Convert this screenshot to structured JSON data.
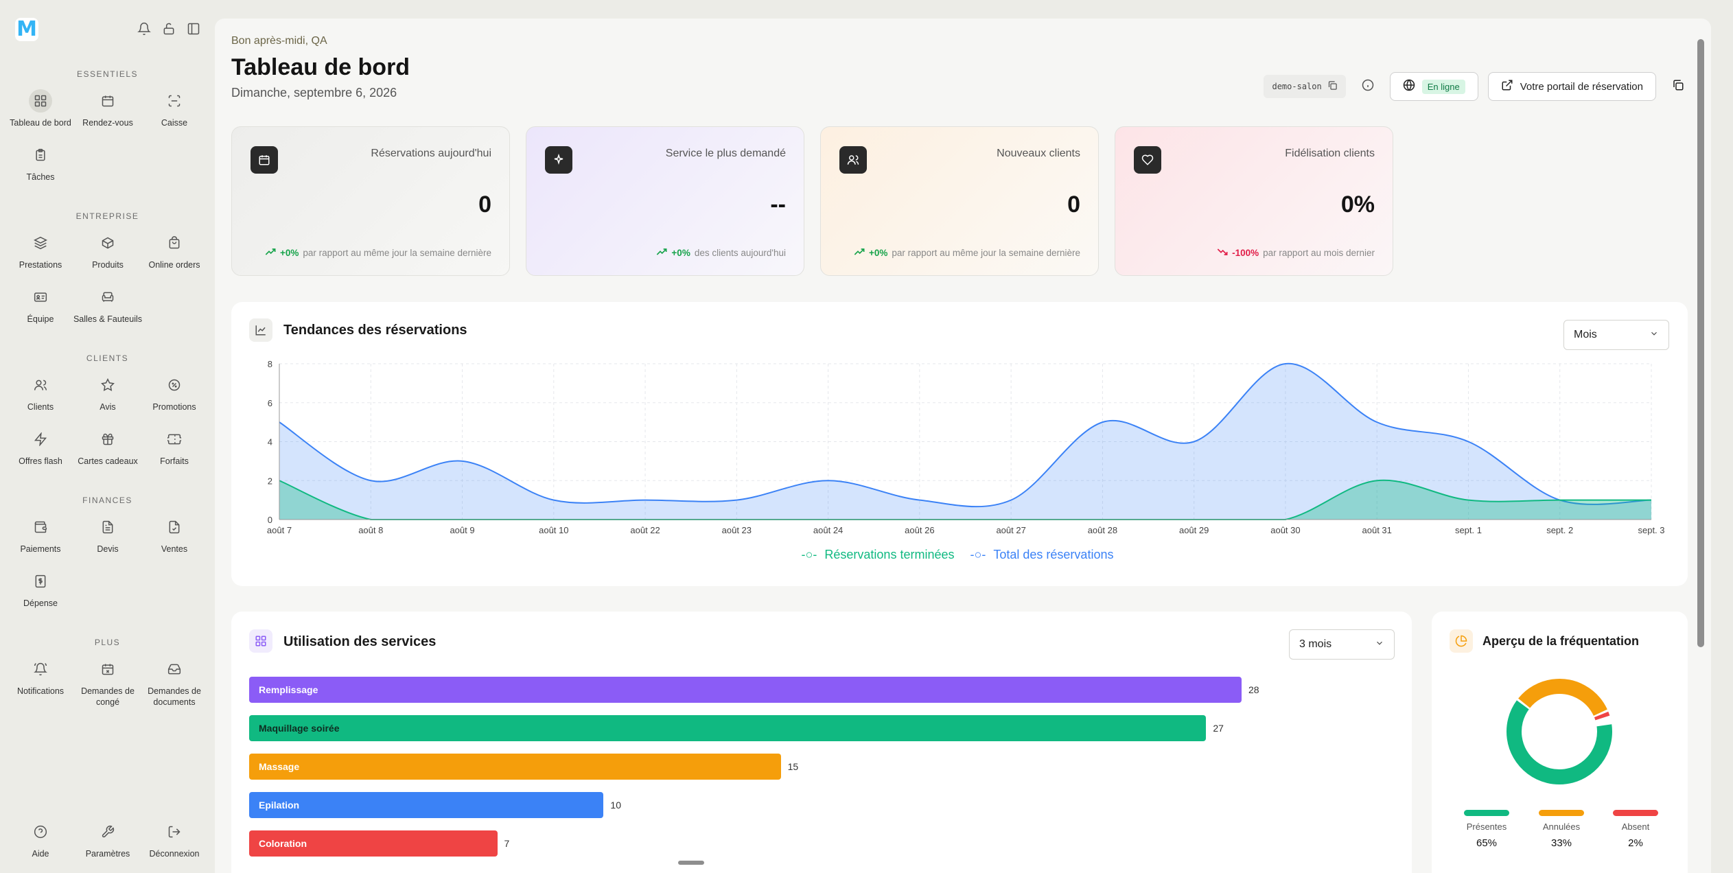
{
  "sidebar": {
    "sections": {
      "essentiels": "ESSENTIELS",
      "entreprise": "ENTREPRISE",
      "clients": "CLIENTS",
      "finances": "FINANCES",
      "plus": "PLUS"
    },
    "items": {
      "dashboard": "Tableau de bord",
      "appointments": "Rendez-vous",
      "register": "Caisse",
      "tasks": "Tâches",
      "services": "Prestations",
      "products": "Produits",
      "online_orders": "Online orders",
      "team": "Équipe",
      "rooms": "Salles & Fauteuils",
      "clients": "Clients",
      "reviews": "Avis",
      "promotions": "Promotions",
      "flash_offers": "Offres flash",
      "gift_cards": "Cartes cadeaux",
      "packages": "Forfaits",
      "payments": "Paiements",
      "quotes": "Devis",
      "sales": "Ventes",
      "expense": "Dépense",
      "notifications": "Notifications",
      "leave_requests": "Demandes de congé",
      "document_requests": "Demandes de documents",
      "help": "Aide",
      "settings": "Paramètres",
      "logout": "Déconnexion"
    }
  },
  "header": {
    "greeting": "Bon après-midi, QA",
    "title": "Tableau de bord",
    "date": "Dimanche, septembre 6, 2026",
    "slug": "demo-salon",
    "online_badge": "En ligne",
    "portal_button": "Votre portail de réservation"
  },
  "stats": [
    {
      "label": "Réservations aujourd'hui",
      "value": "0",
      "trend": "+0%",
      "trend_text": "par rapport au même jour la semaine dernière"
    },
    {
      "label": "Service le plus demandé",
      "value": "--",
      "trend": "+0%",
      "trend_text": "des clients aujourd'hui"
    },
    {
      "label": "Nouveaux clients",
      "value": "0",
      "trend": "+0%",
      "trend_text": "par rapport au même jour la semaine dernière"
    },
    {
      "label": "Fidélisation clients",
      "value": "0%",
      "trend": "-100%",
      "trend_text": "par rapport au mois dernier"
    }
  ],
  "trends_panel": {
    "title": "Tendances des réservations",
    "period": "Mois"
  },
  "services_panel": {
    "title": "Utilisation des services",
    "period": "3 mois"
  },
  "attendance_panel": {
    "title": "Aperçu de la fréquentation",
    "items": [
      {
        "label": "Présentes",
        "pct": "65%",
        "value": 65,
        "color": "#10b981"
      },
      {
        "label": "Annulées",
        "pct": "33%",
        "value": 33,
        "color": "#f59e0b"
      },
      {
        "label": "Absent",
        "pct": "2%",
        "value": 2,
        "color": "#ef4444"
      }
    ]
  },
  "colors": {
    "completed": "#10b981",
    "total": "#3b82f6",
    "purple": "#8b5cf6",
    "green": "#10b981",
    "orange": "#f59e0b",
    "blue": "#3b82f6",
    "red": "#ef4444"
  },
  "chart_data": [
    {
      "type": "area",
      "x": [
        "août 7",
        "août 8",
        "août 9",
        "août 10",
        "août 22",
        "août 23",
        "août 24",
        "août 26",
        "août 27",
        "août 28",
        "août 29",
        "août 30",
        "août 31",
        "sept. 1",
        "sept. 2",
        "sept. 3"
      ],
      "series": [
        {
          "name": "Réservations terminées",
          "values": [
            2,
            0,
            0,
            0,
            0,
            0,
            0,
            0,
            0,
            0,
            0,
            0,
            2,
            1,
            1,
            1
          ]
        },
        {
          "name": "Total des réservations",
          "values": [
            5,
            2,
            3,
            1,
            1,
            1,
            2,
            1,
            1,
            5,
            4,
            8,
            5,
            4,
            1,
            1
          ]
        }
      ],
      "yticks": [
        0,
        2,
        4,
        6,
        8
      ],
      "ylim": [
        0,
        8
      ],
      "grid": true,
      "legend": "bottom"
    },
    {
      "type": "bar",
      "orientation": "horizontal",
      "categories": [
        "Remplissage",
        "Maquillage soirée",
        "Massage",
        "Epilation",
        "Coloration"
      ],
      "values": [
        28,
        27,
        15,
        10,
        7
      ],
      "colors": [
        "#8b5cf6",
        "#10b981",
        "#f59e0b",
        "#3b82f6",
        "#ef4444"
      ]
    },
    {
      "type": "pie",
      "categories": [
        "Présentes",
        "Annulées",
        "Absent"
      ],
      "values": [
        65,
        33,
        2
      ]
    }
  ]
}
